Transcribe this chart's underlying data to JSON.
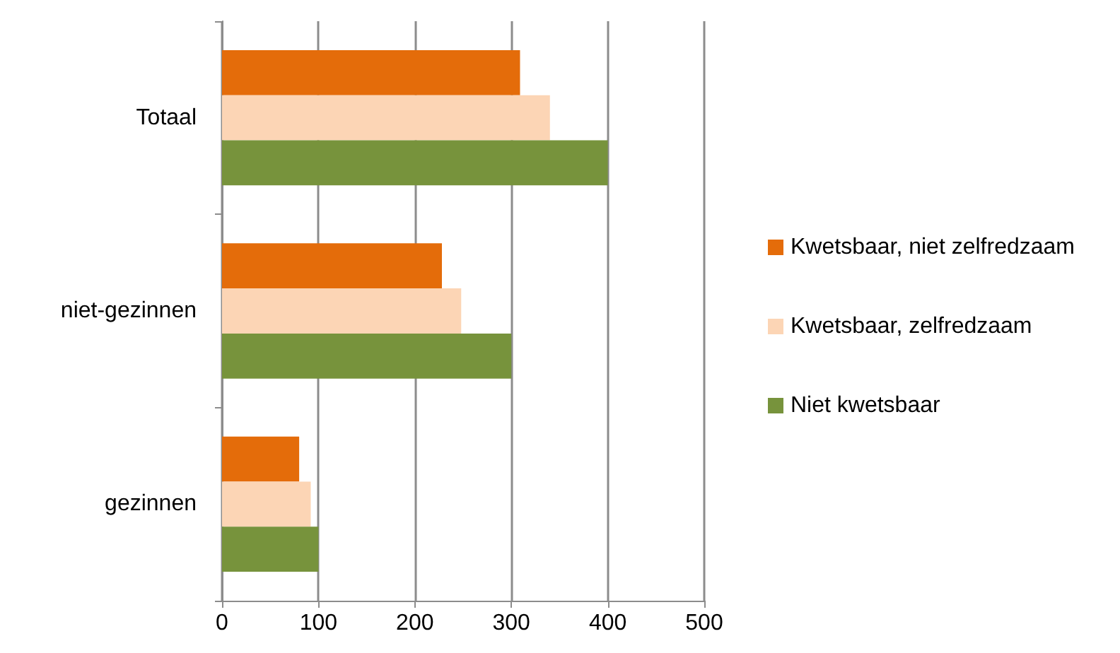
{
  "chart_data": {
    "type": "bar",
    "orientation": "horizontal",
    "categories": [
      "Totaal",
      "niet-gezinnen",
      "gezinnen"
    ],
    "series": [
      {
        "name": "Kwetsbaar, niet zelfredzaam",
        "color": "#e46c0a",
        "values": [
          309,
          228,
          80
        ]
      },
      {
        "name": "Kwetsbaar, zelfredzaam",
        "color": "#fcd5b5",
        "values": [
          340,
          248,
          92
        ]
      },
      {
        "name": "Niet kwetsbaar",
        "color": "#77933c",
        "values": [
          400,
          300,
          100
        ]
      }
    ],
    "xlim": [
      0,
      500
    ],
    "xticks": [
      0,
      100,
      200,
      300,
      400,
      500
    ],
    "grid": "x",
    "legend": "right"
  }
}
